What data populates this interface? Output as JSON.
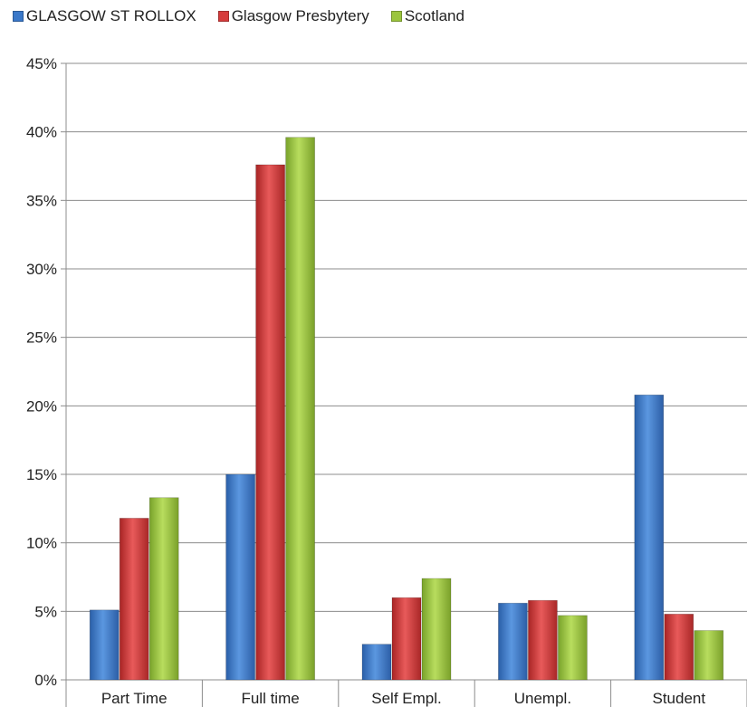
{
  "chart_data": {
    "type": "bar",
    "categories": [
      "Part Time",
      "Full time",
      "Self Empl.",
      "Unempl.",
      "Student"
    ],
    "series": [
      {
        "name": "GLASGOW ST ROLLOX",
        "color": "#3a78c9",
        "values": [
          5.1,
          15.0,
          2.6,
          5.6,
          20.8
        ]
      },
      {
        "name": "Glasgow Presbytery",
        "color": "#d63b3b",
        "values": [
          11.8,
          37.6,
          6.0,
          5.8,
          4.8
        ]
      },
      {
        "name": "Scotland",
        "color": "#9bc53d",
        "values": [
          13.3,
          39.6,
          7.4,
          4.7,
          3.6
        ]
      }
    ],
    "ylim": [
      0,
      45
    ],
    "yticks": [
      "0%",
      "5%",
      "10%",
      "15%",
      "20%",
      "25%",
      "30%",
      "35%",
      "40%",
      "45%"
    ],
    "grid": true,
    "legend_position": "top"
  }
}
